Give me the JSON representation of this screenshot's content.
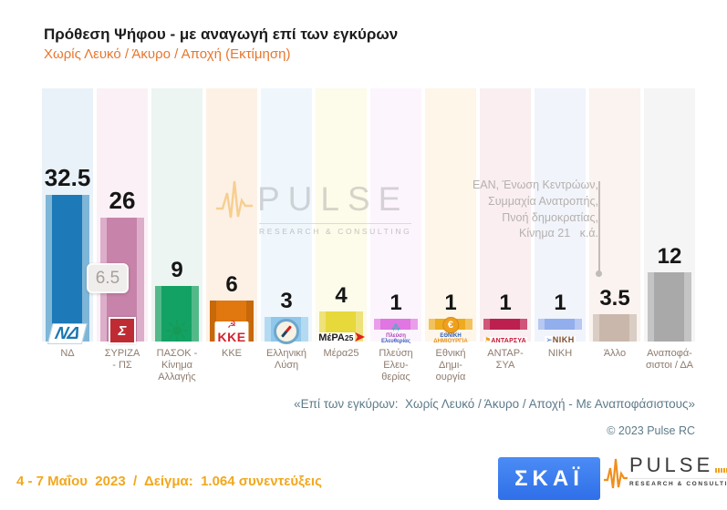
{
  "chart_data": {
    "type": "bar",
    "title": "Πρόθεση Ψήφου - με αναγωγή επί των εγκύρων",
    "subtitle": "Χωρίς Λευκό / Άκυρο / Αποχή  (Εκτίμηση)",
    "unit": "%",
    "ylim": [
      0,
      35
    ],
    "grid": false,
    "legend": "none",
    "categories": [
      "ΝΔ",
      "ΣΥΡΙΖΑ - ΠΣ",
      "ΠΑΣΟΚ - Κίνημα Αλλαγής",
      "ΚΚΕ",
      "Ελληνική Λύση",
      "Μέρα25",
      "Πλεύση Ελευθερίας",
      "Εθνική Δημιουργία",
      "ΑΝΤΑΡΣΥΑ",
      "ΝΙΚΗ",
      "Άλλο",
      "Αναποφάσιστοι / ΔΑ"
    ],
    "values": [
      32.5,
      26,
      9,
      6,
      3,
      4,
      1,
      1,
      1,
      1,
      3.5,
      12
    ],
    "nd_syriza_gap": {
      "value": 6.5,
      "label": "6.5"
    },
    "parties": [
      {
        "key": "nd",
        "label_lines": [
          "ΝΔ"
        ],
        "value": 32.5,
        "value_label": "32.5",
        "bar": "#1d79b7",
        "bar_edge": "#7eb6d8",
        "bg": "#e9f2f8",
        "logo": {
          "kind": "nd",
          "name": "nd-logo",
          "text": "ΝΔ"
        }
      },
      {
        "key": "syriza-ps",
        "label_lines": [
          "ΣΥΡΙΖΑ",
          "- ΠΣ"
        ],
        "value": 26,
        "value_label": "26",
        "bar": "#c783a9",
        "bar_edge": "#dcaeca",
        "bg": "#fbf0f6",
        "logo": {
          "kind": "syriza",
          "name": "syriza-logo",
          "text": "Σ"
        }
      },
      {
        "key": "pasok-kinal",
        "label_lines": [
          "ΠΑΣΟΚ -",
          "Κίνημα",
          "Αλλαγής"
        ],
        "value": 9,
        "value_label": "9",
        "bar": "#13a264",
        "bar_edge": "#54b98a",
        "bg": "#ecf5f1",
        "logo": {
          "kind": "pasok",
          "name": "pasok-sun-logo",
          "glyph": "☀"
        }
      },
      {
        "key": "kke",
        "label_lines": [
          "ΚΚΕ"
        ],
        "value": 6,
        "value_label": "6",
        "bar": "#e1770f",
        "bar_edge": "#c76809",
        "bg": "#fdf1e5",
        "logo": {
          "kind": "kke",
          "name": "kke-logo",
          "text": "ΚΚΕ",
          "glyph": "☭"
        }
      },
      {
        "key": "elliniki-lysi",
        "label_lines": [
          "Ελληνική",
          "Λύση"
        ],
        "value": 3,
        "value_label": "3",
        "bar": "#90c8ec",
        "bar_edge": "#b4daf2",
        "bg": "#eff7fd",
        "logo": {
          "kind": "compass",
          "name": "elliniki-lysi-compass-logo"
        }
      },
      {
        "key": "mera25",
        "label_lines": [
          "Μέρα25"
        ],
        "value": 4,
        "value_label": "4",
        "bar": "#e7d83b",
        "bar_edge": "#eee27a",
        "bg": "#fdfbe9",
        "logo": {
          "kind": "mera",
          "name": "mera25-logo",
          "text": "ΜέΡΑ",
          "sub": "25"
        }
      },
      {
        "key": "plefsi-eleftherias",
        "label_lines": [
          "Πλεύση",
          "Ελευ-",
          "θερίας"
        ],
        "value": 1,
        "value_label": "1",
        "bar": "#df76e2",
        "bar_edge": "#ea9eea",
        "bg": "#fdf5fd",
        "logo": {
          "kind": "plefsi",
          "name": "plefsi-eleftherias-logo",
          "caption": [
            "Πλεύση",
            "Ελευθερίας"
          ]
        }
      },
      {
        "key": "ethniki-dimiourgia",
        "label_lines": [
          "Εθνική",
          "Δημι-",
          "ουργία"
        ],
        "value": 1,
        "value_label": "1",
        "bar": "#edab1e",
        "bar_edge": "#f2c25e",
        "bg": "#fdf6e9",
        "logo": {
          "kind": "euro",
          "name": "ethniki-dimiourgia-logo",
          "glyph": "€",
          "caption": [
            "ΕΘΝΙΚΗ",
            "ΔΗΜΙΟΥΡΓΙΑ"
          ]
        }
      },
      {
        "key": "antarsya",
        "label_lines": [
          "ΑΝΤΑΡ-",
          "ΣΥΑ"
        ],
        "value": 1,
        "value_label": "1",
        "bar": "#bc204e",
        "bar_edge": "#d05578",
        "bg": "#faeef1",
        "logo": {
          "kind": "antarsya",
          "name": "antarsya-logo",
          "text": "ΑΝΤΑΡΣΥΑ"
        }
      },
      {
        "key": "niki",
        "label_lines": [
          "ΝΙΚΗ"
        ],
        "value": 1,
        "value_label": "1",
        "bar": "#93aeec",
        "bar_edge": "#b7c8f2",
        "bg": "#f1f4fb",
        "logo": {
          "kind": "niki",
          "name": "niki-logo",
          "text": "ΝΙΚΗ"
        }
      },
      {
        "key": "allo",
        "label_lines": [
          "Άλλο"
        ],
        "value": 3.5,
        "value_label": "3.5",
        "bar": "#c9b7ab",
        "bar_edge": "#d9cdc4",
        "bg": "#faf3ef",
        "logo": null
      },
      {
        "key": "anapofasistoi-da",
        "label_lines": [
          "Αναποφά-",
          "σιστοι / ΔΑ"
        ],
        "value": 12,
        "value_label": "12",
        "bar": "#a9a9a9",
        "bar_edge": "#c4c4c4",
        "bg": "#f5f5f5",
        "logo": null
      }
    ]
  },
  "watermark": {
    "brand": "PULSE",
    "tagline": "RESEARCH & CONSULTING"
  },
  "annotation": {
    "lines": [
      "ΕΑΝ, Ένωση Κεντρώων,",
      "Συμμαχία Ανατροπής,",
      "Πνοή δημοκρατίας,",
      "Κίνημα 21   κ.ά."
    ]
  },
  "footnote": "«Επί των εγκύρων:  Χωρίς Λευκό / Άκυρο / Αποχή - Με Αναποφάσιστους»",
  "copyright": "© 2023 Pulse RC",
  "footer": {
    "fieldwork": "4 - 7 Μαΐου  2023  /  Δείγμα:  1.064 συνεντεύξεις",
    "skai_logo_text": "ΣΚΑΪ",
    "pulse_brand": "PULSE",
    "pulse_tagline": "RESEARCH & CONSULTING"
  }
}
